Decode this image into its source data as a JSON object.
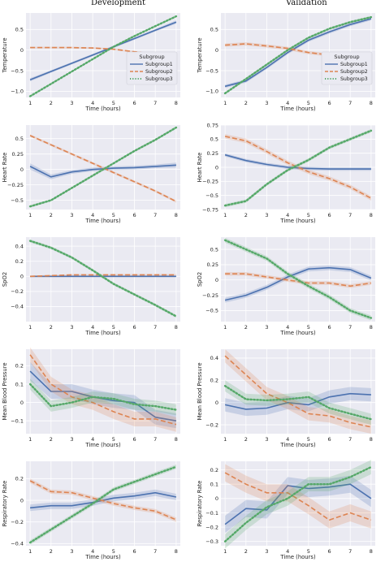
{
  "column_titles": [
    "Development",
    "Validation"
  ],
  "xlabel": "Time (hours)",
  "colors": {
    "panel_bg": "#EAEAF2",
    "grid": "#FFFFFF",
    "subgroup1": "#4C72B0",
    "subgroup2": "#DD8452",
    "subgroup3": "#55A868"
  },
  "legend": {
    "title": "Subgroup",
    "entries": [
      "Subgroup1",
      "Subgroup2",
      "Subgroup3"
    ],
    "placement": "right, inside top row panels"
  },
  "chart_data": [
    {
      "type": "line",
      "row": 0,
      "col": 0,
      "panel": "Development",
      "ylabel": "Temperature",
      "xlim": [
        0.8,
        8.2
      ],
      "ylim": [
        -1.15,
        0.9
      ],
      "x": [
        1,
        2,
        3,
        4,
        5,
        6,
        7,
        8
      ],
      "yticks": [
        -1.0,
        -0.5,
        0.0,
        0.5
      ],
      "legend": true,
      "series": [
        {
          "name": "Subgroup1",
          "values": [
            -0.72,
            -0.52,
            -0.32,
            -0.12,
            0.08,
            0.28,
            0.48,
            0.68
          ],
          "band": [
            0.04,
            0.03,
            0.03,
            0.03,
            0.03,
            0.03,
            0.03,
            0.04
          ]
        },
        {
          "name": "Subgroup2",
          "values": [
            0.06,
            0.06,
            0.06,
            0.05,
            0.02,
            -0.04,
            -0.1,
            -0.17
          ],
          "band": [
            0.02,
            0.02,
            0.02,
            0.02,
            0.02,
            0.02,
            0.02,
            0.02
          ]
        },
        {
          "name": "Subgroup3",
          "values": [
            -1.12,
            -0.82,
            -0.52,
            -0.22,
            0.08,
            0.34,
            0.58,
            0.82
          ],
          "band": [
            0.02,
            0.02,
            0.02,
            0.02,
            0.02,
            0.02,
            0.02,
            0.02
          ]
        }
      ]
    },
    {
      "type": "line",
      "row": 0,
      "col": 1,
      "panel": "Validation",
      "ylabel": "Temperature",
      "xlim": [
        0.8,
        8.2
      ],
      "ylim": [
        -1.15,
        0.9
      ],
      "x": [
        1,
        2,
        3,
        4,
        5,
        6,
        7,
        8
      ],
      "yticks": [
        -1.0,
        -0.5,
        0.0,
        0.5
      ],
      "legend": true,
      "series": [
        {
          "name": "Subgroup1",
          "values": [
            -0.88,
            -0.75,
            -0.42,
            -0.06,
            0.24,
            0.44,
            0.62,
            0.76
          ],
          "band": [
            0.04,
            0.04,
            0.04,
            0.04,
            0.04,
            0.04,
            0.04,
            0.04
          ]
        },
        {
          "name": "Subgroup2",
          "values": [
            0.12,
            0.15,
            0.1,
            0.04,
            -0.06,
            -0.12,
            -0.18,
            -0.24
          ],
          "band": [
            0.04,
            0.04,
            0.04,
            0.04,
            0.04,
            0.04,
            0.04,
            0.04
          ]
        },
        {
          "name": "Subgroup3",
          "values": [
            -1.05,
            -0.7,
            -0.35,
            0.0,
            0.3,
            0.52,
            0.68,
            0.8
          ],
          "band": [
            0.03,
            0.03,
            0.03,
            0.03,
            0.03,
            0.03,
            0.03,
            0.03
          ]
        }
      ]
    },
    {
      "type": "line",
      "row": 1,
      "col": 0,
      "panel": "Development",
      "ylabel": "Heart Rate",
      "xlim": [
        0.8,
        8.2
      ],
      "ylim": [
        -0.65,
        0.72
      ],
      "x": [
        1,
        2,
        3,
        4,
        5,
        6,
        7,
        8
      ],
      "yticks": [
        -0.5,
        -0.25,
        0.0,
        0.25,
        0.5
      ],
      "legend": false,
      "series": [
        {
          "name": "Subgroup1",
          "values": [
            0.05,
            -0.12,
            -0.04,
            0.0,
            0.02,
            0.03,
            0.05,
            0.07
          ],
          "band": [
            0.05,
            0.04,
            0.03,
            0.03,
            0.03,
            0.03,
            0.03,
            0.04
          ]
        },
        {
          "name": "Subgroup2",
          "values": [
            0.55,
            0.4,
            0.25,
            0.1,
            -0.05,
            -0.2,
            -0.35,
            -0.52
          ],
          "band": [
            0.02,
            0.02,
            0.02,
            0.02,
            0.02,
            0.02,
            0.02,
            0.02
          ]
        },
        {
          "name": "Subgroup3",
          "values": [
            -0.6,
            -0.5,
            -0.3,
            -0.1,
            0.1,
            0.3,
            0.48,
            0.68
          ],
          "band": [
            0.02,
            0.02,
            0.02,
            0.02,
            0.02,
            0.02,
            0.02,
            0.02
          ]
        }
      ]
    },
    {
      "type": "line",
      "row": 1,
      "col": 1,
      "panel": "Validation",
      "ylabel": "Heart Rate",
      "xlim": [
        0.8,
        8.2
      ],
      "ylim": [
        -0.75,
        0.75
      ],
      "x": [
        1,
        2,
        3,
        4,
        5,
        6,
        7,
        8
      ],
      "yticks": [
        -0.75,
        -0.5,
        -0.25,
        0.0,
        0.25,
        0.5,
        0.75
      ],
      "legend": false,
      "series": [
        {
          "name": "Subgroup1",
          "values": [
            0.22,
            0.12,
            0.05,
            0.0,
            -0.02,
            -0.03,
            -0.03,
            -0.03
          ],
          "band": [
            0.03,
            0.03,
            0.03,
            0.03,
            0.03,
            0.03,
            0.03,
            0.03
          ]
        },
        {
          "name": "Subgroup2",
          "values": [
            0.55,
            0.47,
            0.28,
            0.08,
            -0.08,
            -0.2,
            -0.35,
            -0.55
          ],
          "band": [
            0.04,
            0.04,
            0.04,
            0.04,
            0.04,
            0.04,
            0.04,
            0.04
          ]
        },
        {
          "name": "Subgroup3",
          "values": [
            -0.68,
            -0.6,
            -0.3,
            -0.05,
            0.13,
            0.35,
            0.5,
            0.65
          ],
          "band": [
            0.03,
            0.03,
            0.03,
            0.03,
            0.03,
            0.03,
            0.03,
            0.03
          ]
        }
      ]
    },
    {
      "type": "line",
      "row": 2,
      "col": 0,
      "panel": "Development",
      "ylabel": "SpO2",
      "xlim": [
        0.8,
        8.2
      ],
      "ylim": [
        -0.6,
        0.52
      ],
      "x": [
        1,
        2,
        3,
        4,
        5,
        6,
        7,
        8
      ],
      "yticks": [
        -0.4,
        -0.2,
        0.0,
        0.2,
        0.4
      ],
      "legend": false,
      "series": [
        {
          "name": "Subgroup1",
          "values": [
            0.0,
            0.0,
            0.0,
            0.0,
            0.0,
            0.0,
            0.0,
            0.0
          ],
          "band": [
            0.01,
            0.01,
            0.01,
            0.01,
            0.01,
            0.01,
            0.01,
            0.01
          ]
        },
        {
          "name": "Subgroup2",
          "values": [
            0.0,
            0.01,
            0.02,
            0.02,
            0.02,
            0.02,
            0.02,
            0.02
          ],
          "band": [
            0.01,
            0.01,
            0.01,
            0.01,
            0.01,
            0.01,
            0.01,
            0.01
          ]
        },
        {
          "name": "Subgroup3",
          "values": [
            0.47,
            0.38,
            0.25,
            0.08,
            -0.1,
            -0.24,
            -0.38,
            -0.53
          ],
          "band": [
            0.02,
            0.02,
            0.02,
            0.02,
            0.02,
            0.02,
            0.02,
            0.02
          ]
        }
      ]
    },
    {
      "type": "line",
      "row": 2,
      "col": 1,
      "panel": "Validation",
      "ylabel": "SpO2",
      "xlim": [
        0.8,
        8.2
      ],
      "ylim": [
        -0.68,
        0.7
      ],
      "x": [
        1,
        2,
        3,
        4,
        5,
        6,
        7,
        8
      ],
      "yticks": [
        -0.5,
        -0.25,
        0.0,
        0.25,
        0.5
      ],
      "legend": false,
      "series": [
        {
          "name": "Subgroup1",
          "values": [
            -0.33,
            -0.25,
            -0.12,
            0.05,
            0.18,
            0.2,
            0.17,
            0.03
          ],
          "band": [
            0.04,
            0.04,
            0.04,
            0.04,
            0.04,
            0.04,
            0.04,
            0.04
          ]
        },
        {
          "name": "Subgroup2",
          "values": [
            0.1,
            0.1,
            0.05,
            0.0,
            -0.05,
            -0.05,
            -0.1,
            -0.05
          ],
          "band": [
            0.03,
            0.03,
            0.03,
            0.03,
            0.03,
            0.03,
            0.03,
            0.03
          ]
        },
        {
          "name": "Subgroup3",
          "values": [
            0.65,
            0.5,
            0.35,
            0.1,
            -0.1,
            -0.28,
            -0.5,
            -0.62
          ],
          "band": [
            0.04,
            0.04,
            0.04,
            0.04,
            0.04,
            0.04,
            0.04,
            0.04
          ]
        }
      ]
    },
    {
      "type": "line",
      "row": 3,
      "col": 0,
      "panel": "Development",
      "ylabel": "Mean Blood Pressure",
      "xlim": [
        0.8,
        8.2
      ],
      "ylim": [
        -0.17,
        0.29
      ],
      "x": [
        1,
        2,
        3,
        4,
        5,
        6,
        7,
        8
      ],
      "yticks": [
        -0.1,
        0.0,
        0.1,
        0.2
      ],
      "legend": false,
      "series": [
        {
          "name": "Subgroup1",
          "values": [
            0.17,
            0.06,
            0.06,
            0.03,
            0.01,
            0.0,
            -0.08,
            -0.1
          ],
          "band": [
            0.05,
            0.04,
            0.04,
            0.04,
            0.04,
            0.04,
            0.04,
            0.04
          ]
        },
        {
          "name": "Subgroup2",
          "values": [
            0.26,
            0.1,
            0.03,
            0.0,
            -0.05,
            -0.09,
            -0.09,
            -0.12
          ],
          "band": [
            0.04,
            0.04,
            0.04,
            0.04,
            0.04,
            0.04,
            0.04,
            0.04
          ]
        },
        {
          "name": "Subgroup3",
          "values": [
            0.1,
            -0.02,
            0.0,
            0.03,
            0.02,
            -0.01,
            -0.02,
            -0.04
          ],
          "band": [
            0.03,
            0.03,
            0.03,
            0.03,
            0.03,
            0.03,
            0.03,
            0.03
          ]
        }
      ]
    },
    {
      "type": "line",
      "row": 3,
      "col": 1,
      "panel": "Validation",
      "ylabel": "Mean Blood Pressure",
      "xlim": [
        0.8,
        8.2
      ],
      "ylim": [
        -0.28,
        0.48
      ],
      "x": [
        1,
        2,
        3,
        4,
        5,
        6,
        7,
        8
      ],
      "yticks": [
        -0.2,
        0.0,
        0.2,
        0.4
      ],
      "legend": false,
      "series": [
        {
          "name": "Subgroup1",
          "values": [
            -0.02,
            -0.06,
            -0.05,
            0.0,
            -0.02,
            0.05,
            0.08,
            0.07
          ],
          "band": [
            0.06,
            0.06,
            0.06,
            0.06,
            0.06,
            0.06,
            0.06,
            0.06
          ]
        },
        {
          "name": "Subgroup2",
          "values": [
            0.42,
            0.25,
            0.08,
            0.0,
            -0.1,
            -0.12,
            -0.18,
            -0.22
          ],
          "band": [
            0.06,
            0.06,
            0.06,
            0.06,
            0.06,
            0.06,
            0.06,
            0.06
          ]
        },
        {
          "name": "Subgroup3",
          "values": [
            0.15,
            0.03,
            0.02,
            0.03,
            0.05,
            -0.05,
            -0.1,
            -0.15
          ],
          "band": [
            0.05,
            0.05,
            0.05,
            0.05,
            0.05,
            0.05,
            0.05,
            0.05
          ]
        }
      ]
    },
    {
      "type": "line",
      "row": 4,
      "col": 0,
      "panel": "Development",
      "ylabel": "Respiratory Rate",
      "xlim": [
        0.8,
        8.2
      ],
      "ylim": [
        -0.42,
        0.36
      ],
      "x": [
        1,
        2,
        3,
        4,
        5,
        6,
        7,
        8
      ],
      "yticks": [
        -0.4,
        -0.2,
        0.0,
        0.2
      ],
      "legend": false,
      "series": [
        {
          "name": "Subgroup1",
          "values": [
            -0.07,
            -0.05,
            -0.05,
            -0.02,
            0.02,
            0.04,
            0.07,
            0.03
          ],
          "band": [
            0.03,
            0.03,
            0.03,
            0.03,
            0.03,
            0.03,
            0.03,
            0.03
          ]
        },
        {
          "name": "Subgroup2",
          "values": [
            0.18,
            0.08,
            0.07,
            0.02,
            -0.03,
            -0.07,
            -0.1,
            -0.18
          ],
          "band": [
            0.02,
            0.02,
            0.02,
            0.02,
            0.02,
            0.02,
            0.02,
            0.02
          ]
        },
        {
          "name": "Subgroup3",
          "values": [
            -0.39,
            -0.27,
            -0.15,
            -0.03,
            0.1,
            0.17,
            0.24,
            0.31
          ],
          "band": [
            0.02,
            0.02,
            0.02,
            0.02,
            0.02,
            0.02,
            0.02,
            0.02
          ]
        }
      ]
    },
    {
      "type": "line",
      "row": 4,
      "col": 1,
      "panel": "Validation",
      "ylabel": "Respiratory Rate",
      "xlim": [
        0.8,
        8.2
      ],
      "ylim": [
        -0.33,
        0.26
      ],
      "x": [
        1,
        2,
        3,
        4,
        5,
        6,
        7,
        8
      ],
      "yticks": [
        -0.3,
        -0.2,
        -0.1,
        0.0,
        0.1,
        0.2
      ],
      "legend": false,
      "series": [
        {
          "name": "Subgroup1",
          "values": [
            -0.18,
            -0.07,
            -0.08,
            0.09,
            0.07,
            0.08,
            0.1,
            0.0
          ],
          "band": [
            0.06,
            0.06,
            0.06,
            0.06,
            0.06,
            0.06,
            0.06,
            0.06
          ]
        },
        {
          "name": "Subgroup2",
          "values": [
            0.18,
            0.1,
            0.04,
            0.04,
            -0.05,
            -0.15,
            -0.1,
            -0.15
          ],
          "band": [
            0.06,
            0.06,
            0.06,
            0.06,
            0.06,
            0.06,
            0.06,
            0.06
          ]
        },
        {
          "name": "Subgroup3",
          "values": [
            -0.3,
            -0.17,
            -0.06,
            0.0,
            0.1,
            0.1,
            0.15,
            0.22
          ],
          "band": [
            0.05,
            0.05,
            0.05,
            0.05,
            0.05,
            0.05,
            0.05,
            0.05
          ]
        }
      ]
    }
  ]
}
